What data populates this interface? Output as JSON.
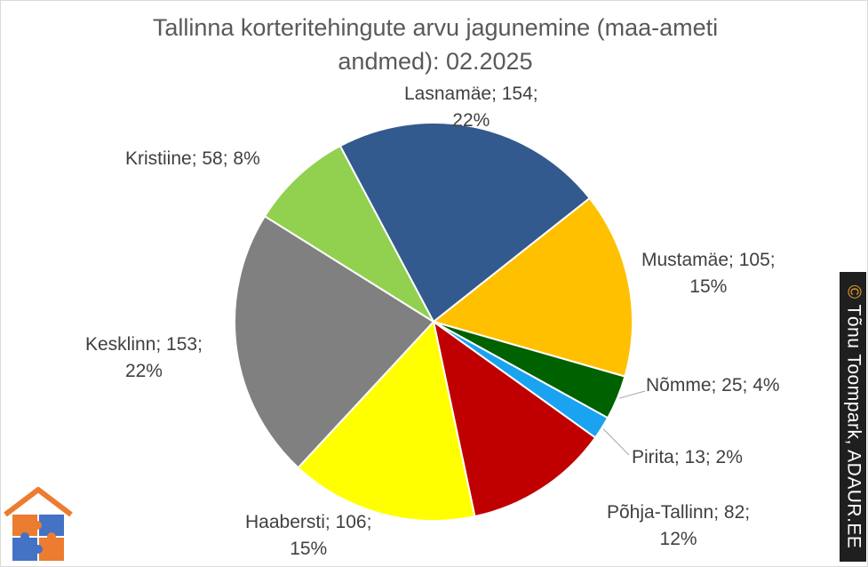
{
  "chart_data": {
    "type": "pie",
    "title": "Tallinna korteritehingute arvu jagunemine (maa-ameti andmed): 02.2025",
    "title_lines": [
      "Tallinna korteritehingute arvu jagunemine (maa-ameti",
      "andmed): 02.2025"
    ],
    "slices": [
      {
        "name": "Lasnamäe",
        "value": 154,
        "percent": "22%",
        "color": "#335a8e",
        "label_line1": "Lasnamäe; 154;",
        "label_line2": "22%"
      },
      {
        "name": "Mustamäe",
        "value": 105,
        "percent": "15%",
        "color": "#ffc000",
        "label_line1": "Mustamäe; 105;",
        "label_line2": "15%"
      },
      {
        "name": "Nõmme",
        "value": 25,
        "percent": "4%",
        "color": "#006100",
        "label_line1": "Nõmme; 25; 4%",
        "label_line2": ""
      },
      {
        "name": "Pirita",
        "value": 13,
        "percent": "2%",
        "color": "#1aa3f0",
        "label_line1": "Pirita; 13; 2%",
        "label_line2": ""
      },
      {
        "name": "Põhja-Tallinn",
        "value": 82,
        "percent": "12%",
        "color": "#c00000",
        "label_line1": "Põhja-Tallinn; 82;",
        "label_line2": "12%"
      },
      {
        "name": "Haabersti",
        "value": 106,
        "percent": "15%",
        "color": "#ffff00",
        "label_line1": "Haabersti; 106;",
        "label_line2": "15%"
      },
      {
        "name": "Kesklinn",
        "value": 153,
        "percent": "22%",
        "color": "#808080",
        "label_line1": "Kesklinn; 153;",
        "label_line2": "22%"
      },
      {
        "name": "Kristiine",
        "value": 58,
        "percent": "8%",
        "color": "#92d050",
        "label_line1": "Kristiine; 58; 8%",
        "label_line2": ""
      }
    ]
  },
  "watermark": {
    "symbol": "©",
    "text": "Tõnu Toompark, ADAUR.EE"
  },
  "logo": {
    "icon": "house-puzzle-logo"
  }
}
